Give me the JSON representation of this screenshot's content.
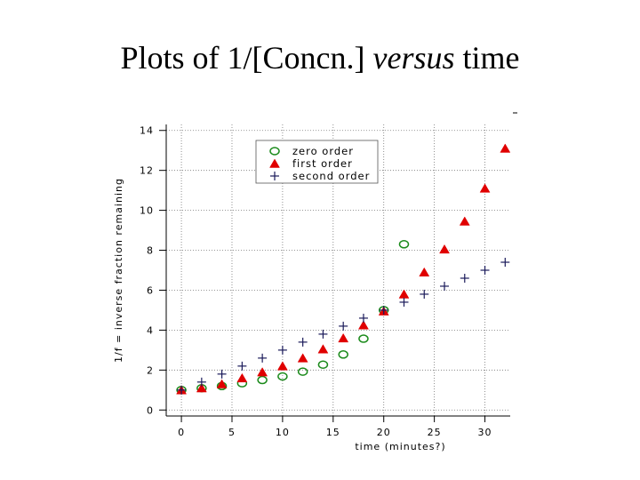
{
  "slide": {
    "title_part1": "Plots of 1/[Concn.] ",
    "title_italic": "versus",
    "title_part2": " time"
  },
  "chart_data": {
    "type": "scatter",
    "title": "Plots of 1/[Concn.] versus time",
    "xlabel": "time (minutes?)",
    "ylabel": "1/f = inverse fraction remaining",
    "xlim": [
      -1.5,
      32.5
    ],
    "ylim": [
      -0.3,
      14.3
    ],
    "xticks": [
      0,
      5,
      10,
      15,
      20,
      25,
      30
    ],
    "yticks": [
      0,
      2,
      4,
      6,
      8,
      10,
      12,
      14
    ],
    "grid": true,
    "legend_position": "top-center",
    "series": [
      {
        "name": "zero order",
        "marker": "circle",
        "color": "#1a8a1a",
        "x": [
          0,
          2,
          4,
          6,
          8,
          10,
          12,
          14,
          16,
          18,
          20,
          22
        ],
        "y": [
          1.0,
          1.09,
          1.2,
          1.34,
          1.5,
          1.68,
          1.92,
          2.27,
          2.78,
          3.57,
          5.0,
          8.3
        ]
      },
      {
        "name": "first order",
        "marker": "triangle",
        "color": "#e00000",
        "x": [
          0,
          2,
          4,
          6,
          8,
          10,
          12,
          14,
          16,
          18,
          20,
          22,
          24,
          26,
          28,
          30,
          32
        ],
        "y": [
          1.0,
          1.1,
          1.3,
          1.6,
          1.9,
          2.2,
          2.6,
          3.05,
          3.6,
          4.25,
          4.95,
          5.8,
          6.9,
          8.05,
          9.45,
          11.1,
          13.1
        ]
      },
      {
        "name": "second order",
        "marker": "plus",
        "color": "#1a1a5a",
        "x": [
          0,
          2,
          4,
          6,
          8,
          10,
          12,
          14,
          16,
          18,
          20,
          22,
          24,
          26,
          28,
          30,
          32
        ],
        "y": [
          1.0,
          1.4,
          1.8,
          2.2,
          2.6,
          3.0,
          3.4,
          3.8,
          4.2,
          4.6,
          5.0,
          5.4,
          5.8,
          6.2,
          6.6,
          7.0,
          7.4
        ]
      }
    ]
  }
}
